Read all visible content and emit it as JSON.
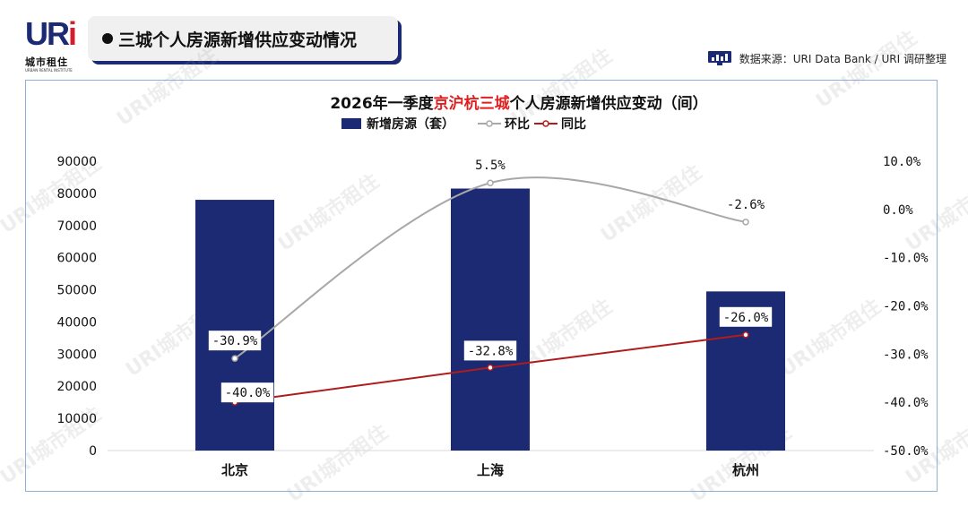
{
  "header": {
    "logo_main": "UR",
    "logo_i": "i",
    "logo_cn": "城市租住",
    "logo_en": "URBAN RENTAL INSTITUTE",
    "title": "三城个人房源新增供应变动情况",
    "source": "数据来源：URI Data Bank / URI 调研整理",
    "source_icon": "bar-chart-icon"
  },
  "watermark": "URI城市租住",
  "colors": {
    "bar": "#1b2a72",
    "qoq_line": "#a8a8a8",
    "yoy_line": "#b01c1c",
    "title_highlight": "#e02020"
  },
  "chart_data": {
    "type": "bar",
    "title_prefix": "2026年一季度",
    "title_highlight": "京沪杭三城",
    "title_suffix": "个人房源新增供应变动（间）",
    "categories": [
      "北京",
      "上海",
      "杭州"
    ],
    "series": [
      {
        "name": "新增房源（套）",
        "type": "bar",
        "axis": "left",
        "values": [
          78000,
          81500,
          49500
        ]
      },
      {
        "name": "环比",
        "type": "line",
        "axis": "right",
        "smooth": true,
        "values": [
          -30.9,
          5.5,
          -2.6
        ],
        "labels": [
          "-30.9%",
          "5.5%",
          "-2.6%"
        ]
      },
      {
        "name": "同比",
        "type": "line",
        "axis": "right",
        "smooth": false,
        "values": [
          -40.0,
          -32.8,
          -26.0
        ],
        "labels": [
          "-40.0%",
          "-32.8%",
          "-26.0%"
        ]
      }
    ],
    "left_axis": {
      "ylim": [
        0,
        90000
      ],
      "ticks": [
        "0",
        "10000",
        "20000",
        "30000",
        "40000",
        "50000",
        "60000",
        "70000",
        "80000",
        "90000"
      ]
    },
    "right_axis": {
      "ylim": [
        -50,
        10
      ],
      "ticks": [
        "-50.0%",
        "-40.0%",
        "-30.0%",
        "-20.0%",
        "-10.0%",
        "0.0%",
        "10.0%"
      ]
    },
    "legend": "top-center",
    "grid": false
  }
}
